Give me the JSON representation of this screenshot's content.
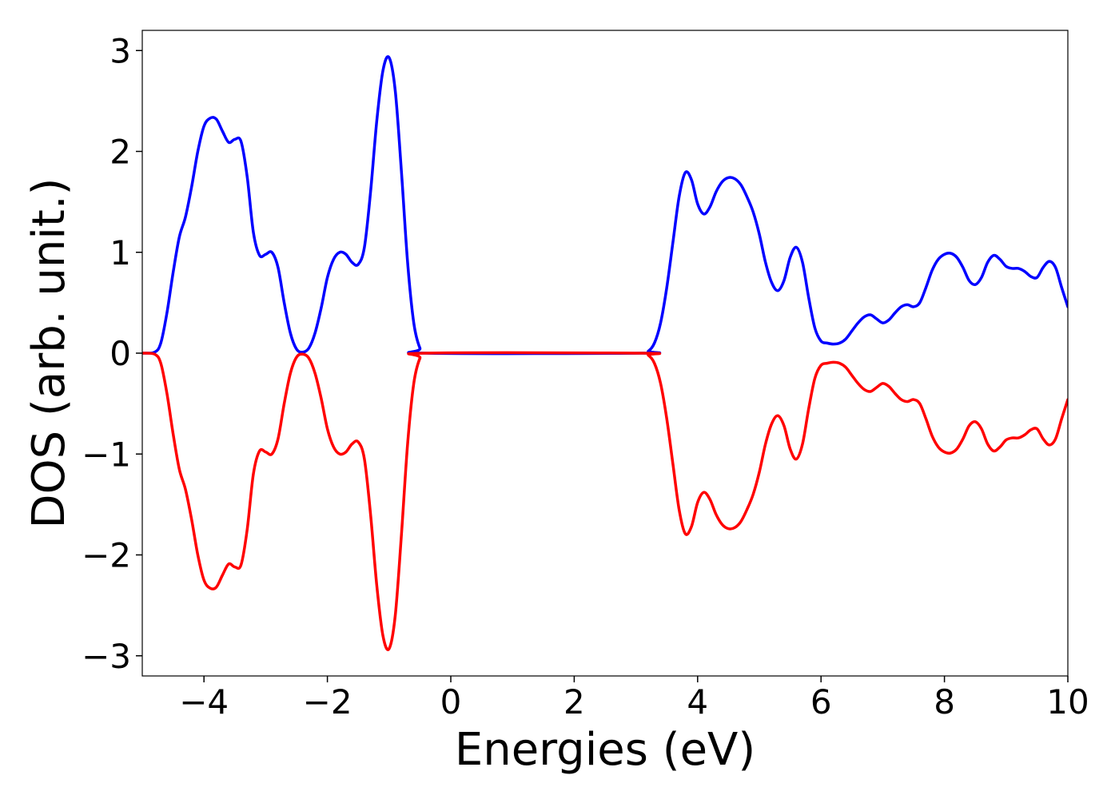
{
  "chart_data": {
    "type": "line",
    "title": "",
    "xlabel": "Energies (eV)",
    "ylabel": "DOS (arb. unit.)",
    "xlim": [
      -5,
      10
    ],
    "ylim": [
      -3.2,
      3.2
    ],
    "xticks": [
      -4,
      -2,
      0,
      2,
      4,
      6,
      8,
      10
    ],
    "yticks": [
      -3,
      -2,
      -1,
      0,
      1,
      2,
      3
    ],
    "xtick_labels": [
      "−4",
      "−2",
      "0",
      "2",
      "4",
      "6",
      "8",
      "10"
    ],
    "ytick_labels": [
      "−3",
      "−2",
      "−1",
      "0",
      "1",
      "2",
      "3"
    ],
    "grid": false,
    "legend": "none",
    "series": [
      {
        "color": "#0000ff",
        "points": [
          [
            -5.0,
            0.0
          ],
          [
            -4.8,
            0.01
          ],
          [
            -4.7,
            0.1
          ],
          [
            -4.6,
            0.4
          ],
          [
            -4.5,
            0.8
          ],
          [
            -4.4,
            1.15
          ],
          [
            -4.3,
            1.35
          ],
          [
            -4.2,
            1.65
          ],
          [
            -4.1,
            2.0
          ],
          [
            -4.0,
            2.25
          ],
          [
            -3.9,
            2.33
          ],
          [
            -3.8,
            2.32
          ],
          [
            -3.7,
            2.2
          ],
          [
            -3.6,
            2.09
          ],
          [
            -3.5,
            2.12
          ],
          [
            -3.4,
            2.1
          ],
          [
            -3.3,
            1.75
          ],
          [
            -3.2,
            1.2
          ],
          [
            -3.1,
            0.97
          ],
          [
            -3.0,
            0.98
          ],
          [
            -2.9,
            1.0
          ],
          [
            -2.8,
            0.85
          ],
          [
            -2.7,
            0.5
          ],
          [
            -2.6,
            0.2
          ],
          [
            -2.5,
            0.04
          ],
          [
            -2.4,
            0.01
          ],
          [
            -2.3,
            0.05
          ],
          [
            -2.2,
            0.2
          ],
          [
            -2.1,
            0.45
          ],
          [
            -2.0,
            0.75
          ],
          [
            -1.9,
            0.93
          ],
          [
            -1.8,
            1.0
          ],
          [
            -1.7,
            0.98
          ],
          [
            -1.6,
            0.9
          ],
          [
            -1.5,
            0.88
          ],
          [
            -1.4,
            1.05
          ],
          [
            -1.3,
            1.6
          ],
          [
            -1.2,
            2.3
          ],
          [
            -1.1,
            2.8
          ],
          [
            -1.0,
            2.93
          ],
          [
            -0.9,
            2.6
          ],
          [
            -0.8,
            1.8
          ],
          [
            -0.7,
            0.9
          ],
          [
            -0.6,
            0.3
          ],
          [
            -0.5,
            0.05
          ],
          [
            -0.4,
            0.0
          ],
          [
            3.1,
            0.0
          ],
          [
            3.2,
            0.02
          ],
          [
            3.3,
            0.1
          ],
          [
            3.4,
            0.3
          ],
          [
            3.5,
            0.65
          ],
          [
            3.6,
            1.1
          ],
          [
            3.7,
            1.55
          ],
          [
            3.8,
            1.79
          ],
          [
            3.9,
            1.72
          ],
          [
            4.0,
            1.48
          ],
          [
            4.1,
            1.38
          ],
          [
            4.2,
            1.45
          ],
          [
            4.3,
            1.6
          ],
          [
            4.4,
            1.7
          ],
          [
            4.5,
            1.74
          ],
          [
            4.6,
            1.73
          ],
          [
            4.7,
            1.67
          ],
          [
            4.8,
            1.55
          ],
          [
            4.9,
            1.4
          ],
          [
            5.0,
            1.18
          ],
          [
            5.1,
            0.9
          ],
          [
            5.2,
            0.7
          ],
          [
            5.3,
            0.62
          ],
          [
            5.4,
            0.72
          ],
          [
            5.5,
            0.95
          ],
          [
            5.6,
            1.05
          ],
          [
            5.7,
            0.9
          ],
          [
            5.8,
            0.55
          ],
          [
            5.9,
            0.25
          ],
          [
            6.0,
            0.12
          ],
          [
            6.1,
            0.1
          ],
          [
            6.2,
            0.09
          ],
          [
            6.3,
            0.1
          ],
          [
            6.4,
            0.14
          ],
          [
            6.5,
            0.22
          ],
          [
            6.6,
            0.3
          ],
          [
            6.7,
            0.36
          ],
          [
            6.8,
            0.38
          ],
          [
            6.9,
            0.34
          ],
          [
            7.0,
            0.3
          ],
          [
            7.1,
            0.33
          ],
          [
            7.2,
            0.4
          ],
          [
            7.3,
            0.46
          ],
          [
            7.4,
            0.48
          ],
          [
            7.5,
            0.46
          ],
          [
            7.6,
            0.5
          ],
          [
            7.7,
            0.65
          ],
          [
            7.8,
            0.82
          ],
          [
            7.9,
            0.93
          ],
          [
            8.0,
            0.98
          ],
          [
            8.1,
            0.99
          ],
          [
            8.2,
            0.95
          ],
          [
            8.3,
            0.85
          ],
          [
            8.4,
            0.72
          ],
          [
            8.5,
            0.68
          ],
          [
            8.6,
            0.75
          ],
          [
            8.7,
            0.9
          ],
          [
            8.8,
            0.97
          ],
          [
            8.9,
            0.93
          ],
          [
            9.0,
            0.86
          ],
          [
            9.1,
            0.84
          ],
          [
            9.2,
            0.84
          ],
          [
            9.3,
            0.81
          ],
          [
            9.4,
            0.76
          ],
          [
            9.5,
            0.75
          ],
          [
            9.6,
            0.85
          ],
          [
            9.7,
            0.91
          ],
          [
            9.8,
            0.85
          ],
          [
            9.9,
            0.65
          ],
          [
            10.0,
            0.46
          ]
        ]
      },
      {
        "color": "#ff0000",
        "points": [
          [
            -5.0,
            0.0
          ],
          [
            -4.8,
            -0.01
          ],
          [
            -4.7,
            -0.1
          ],
          [
            -4.6,
            -0.4
          ],
          [
            -4.5,
            -0.8
          ],
          [
            -4.4,
            -1.15
          ],
          [
            -4.3,
            -1.35
          ],
          [
            -4.2,
            -1.65
          ],
          [
            -4.1,
            -2.0
          ],
          [
            -4.0,
            -2.25
          ],
          [
            -3.9,
            -2.33
          ],
          [
            -3.8,
            -2.32
          ],
          [
            -3.7,
            -2.2
          ],
          [
            -3.6,
            -2.09
          ],
          [
            -3.5,
            -2.12
          ],
          [
            -3.4,
            -2.1
          ],
          [
            -3.3,
            -1.75
          ],
          [
            -3.2,
            -1.2
          ],
          [
            -3.1,
            -0.97
          ],
          [
            -3.0,
            -0.98
          ],
          [
            -2.9,
            -1.0
          ],
          [
            -2.8,
            -0.85
          ],
          [
            -2.7,
            -0.5
          ],
          [
            -2.6,
            -0.2
          ],
          [
            -2.5,
            -0.04
          ],
          [
            -2.4,
            -0.01
          ],
          [
            -2.3,
            -0.05
          ],
          [
            -2.2,
            -0.2
          ],
          [
            -2.1,
            -0.45
          ],
          [
            -2.0,
            -0.75
          ],
          [
            -1.9,
            -0.93
          ],
          [
            -1.8,
            -1.0
          ],
          [
            -1.7,
            -0.98
          ],
          [
            -1.6,
            -0.9
          ],
          [
            -1.5,
            -0.88
          ],
          [
            -1.4,
            -1.05
          ],
          [
            -1.3,
            -1.6
          ],
          [
            -1.2,
            -2.3
          ],
          [
            -1.1,
            -2.8
          ],
          [
            -1.0,
            -2.93
          ],
          [
            -0.9,
            -2.6
          ],
          [
            -0.8,
            -1.8
          ],
          [
            -0.7,
            -0.9
          ],
          [
            -0.6,
            -0.3
          ],
          [
            -0.5,
            -0.05
          ],
          [
            -0.4,
            0.0
          ],
          [
            3.1,
            0.0
          ],
          [
            3.2,
            -0.02
          ],
          [
            3.3,
            -0.1
          ],
          [
            3.4,
            -0.3
          ],
          [
            3.5,
            -0.65
          ],
          [
            3.6,
            -1.1
          ],
          [
            3.7,
            -1.55
          ],
          [
            3.8,
            -1.79
          ],
          [
            3.9,
            -1.72
          ],
          [
            4.0,
            -1.48
          ],
          [
            4.1,
            -1.38
          ],
          [
            4.2,
            -1.45
          ],
          [
            4.3,
            -1.6
          ],
          [
            4.4,
            -1.7
          ],
          [
            4.5,
            -1.74
          ],
          [
            4.6,
            -1.73
          ],
          [
            4.7,
            -1.67
          ],
          [
            4.8,
            -1.55
          ],
          [
            4.9,
            -1.4
          ],
          [
            5.0,
            -1.18
          ],
          [
            5.1,
            -0.9
          ],
          [
            5.2,
            -0.7
          ],
          [
            5.3,
            -0.62
          ],
          [
            5.4,
            -0.72
          ],
          [
            5.5,
            -0.95
          ],
          [
            5.6,
            -1.05
          ],
          [
            5.7,
            -0.9
          ],
          [
            5.8,
            -0.55
          ],
          [
            5.9,
            -0.25
          ],
          [
            6.0,
            -0.12
          ],
          [
            6.1,
            -0.1
          ],
          [
            6.2,
            -0.09
          ],
          [
            6.3,
            -0.1
          ],
          [
            6.4,
            -0.14
          ],
          [
            6.5,
            -0.22
          ],
          [
            6.6,
            -0.3
          ],
          [
            6.7,
            -0.36
          ],
          [
            6.8,
            -0.38
          ],
          [
            6.9,
            -0.34
          ],
          [
            7.0,
            -0.3
          ],
          [
            7.1,
            -0.33
          ],
          [
            7.2,
            -0.4
          ],
          [
            7.3,
            -0.46
          ],
          [
            7.4,
            -0.48
          ],
          [
            7.5,
            -0.46
          ],
          [
            7.6,
            -0.5
          ],
          [
            7.7,
            -0.65
          ],
          [
            7.8,
            -0.82
          ],
          [
            7.9,
            -0.93
          ],
          [
            8.0,
            -0.98
          ],
          [
            8.1,
            -0.99
          ],
          [
            8.2,
            -0.95
          ],
          [
            8.3,
            -0.85
          ],
          [
            8.4,
            -0.72
          ],
          [
            8.5,
            -0.68
          ],
          [
            8.6,
            -0.75
          ],
          [
            8.7,
            -0.9
          ],
          [
            8.8,
            -0.97
          ],
          [
            8.9,
            -0.93
          ],
          [
            9.0,
            -0.86
          ],
          [
            9.1,
            -0.84
          ],
          [
            9.2,
            -0.84
          ],
          [
            9.3,
            -0.81
          ],
          [
            9.4,
            -0.76
          ],
          [
            9.5,
            -0.75
          ],
          [
            9.6,
            -0.85
          ],
          [
            9.7,
            -0.91
          ],
          [
            9.8,
            -0.85
          ],
          [
            9.9,
            -0.65
          ],
          [
            10.0,
            -0.46
          ]
        ]
      }
    ]
  }
}
